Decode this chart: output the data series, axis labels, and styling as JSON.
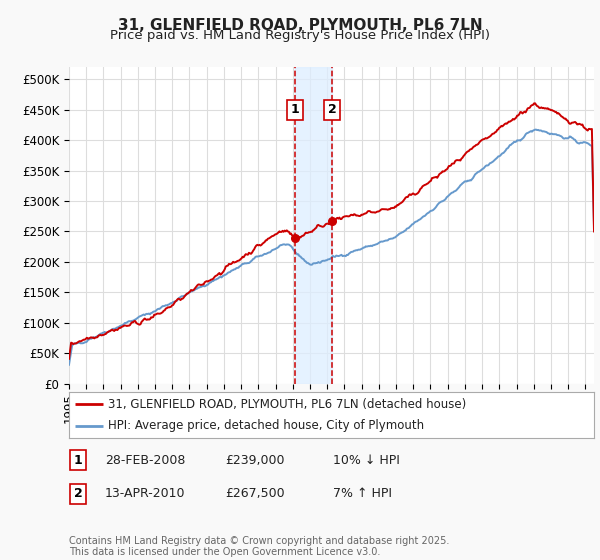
{
  "title": "31, GLENFIELD ROAD, PLYMOUTH, PL6 7LN",
  "subtitle": "Price paid vs. HM Land Registry's House Price Index (HPI)",
  "background_color": "#f9f9f9",
  "plot_bg_color": "#ffffff",
  "grid_color": "#dddddd",
  "ylim": [
    0,
    520000
  ],
  "yticks": [
    0,
    50000,
    100000,
    150000,
    200000,
    250000,
    300000,
    350000,
    400000,
    450000,
    500000
  ],
  "ytick_labels": [
    "£0",
    "£50K",
    "£100K",
    "£150K",
    "£200K",
    "£250K",
    "£300K",
    "£350K",
    "£400K",
    "£450K",
    "£500K"
  ],
  "sale1_date": 2008.15,
  "sale1_price": 239000,
  "sale2_date": 2010.28,
  "sale2_price": 267500,
  "red_line_color": "#cc0000",
  "blue_line_color": "#6699cc",
  "dashed_line_color": "#cc0000",
  "shade_color": "#ddeeff",
  "legend_line1": "31, GLENFIELD ROAD, PLYMOUTH, PL6 7LN (detached house)",
  "legend_line2": "HPI: Average price, detached house, City of Plymouth",
  "table_row1": [
    "1",
    "28-FEB-2008",
    "£239,000",
    "10% ↓ HPI"
  ],
  "table_row2": [
    "2",
    "13-APR-2010",
    "£267,500",
    "7% ↑ HPI"
  ],
  "footer": "Contains HM Land Registry data © Crown copyright and database right 2025.\nThis data is licensed under the Open Government Licence v3.0.",
  "title_fontsize": 11,
  "subtitle_fontsize": 9.5,
  "tick_fontsize": 8.5,
  "xlim": [
    1995,
    2025.5
  ]
}
